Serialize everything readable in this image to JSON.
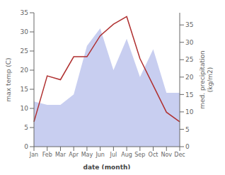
{
  "chart_data": {
    "type": "line",
    "categories": [
      "Jan",
      "Feb",
      "Mar",
      "Apr",
      "May",
      "Jun",
      "Jul",
      "Aug",
      "Sep",
      "Oct",
      "Nov",
      "Dec"
    ],
    "series": [
      {
        "type": "area",
        "axis": "y2",
        "color": "#aab4e8",
        "values": [
          13.0,
          12.0,
          12.0,
          15.0,
          29.0,
          34.0,
          22.0,
          31.0,
          20.0,
          28.0,
          15.5,
          15.5
        ]
      },
      {
        "type": "line",
        "color": "#b03030",
        "values": [
          6.5,
          18.5,
          17.5,
          23.5,
          23.5,
          29.0,
          32.0,
          34.0,
          23.0,
          16.0,
          9.0,
          6.5
        ]
      }
    ],
    "xlabel": "date (month)",
    "ylabel": "max temp (C)",
    "y2label": "med. precipitation\n(kg/m2)",
    "ylim": [
      0,
      35
    ],
    "yticks": [
      0,
      5,
      10,
      15,
      20,
      25,
      30,
      35
    ],
    "y2lim": [
      0,
      38.5
    ],
    "y2ticks": [
      0,
      5,
      10,
      15,
      20,
      25,
      30,
      35
    ],
    "grid": false
  }
}
